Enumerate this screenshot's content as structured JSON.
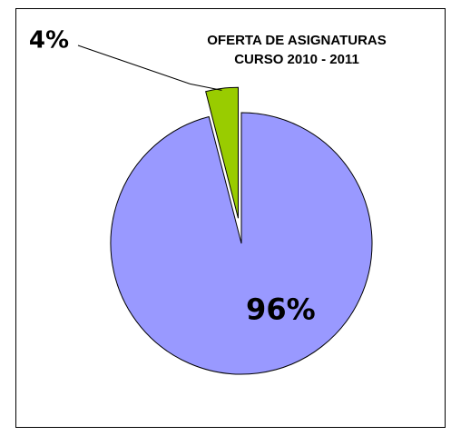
{
  "chart_data": {
    "type": "pie",
    "title": [
      "OFERTA DE ASIGNATURAS",
      "CURSO 2010 - 2011"
    ],
    "values": [
      96,
      4
    ],
    "value_labels": [
      "96%",
      "4%"
    ],
    "colors": [
      "#9999ff",
      "#99cc00"
    ]
  }
}
